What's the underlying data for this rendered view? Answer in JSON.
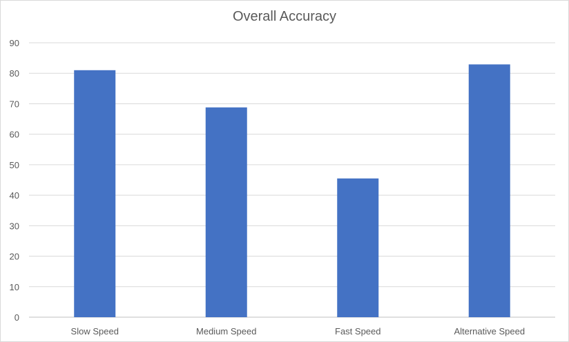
{
  "chart_data": {
    "type": "bar",
    "title": "Overall Accuracy",
    "categories": [
      "Slow Speed",
      "Medium Speed",
      "Fast Speed",
      "Alternative Speed"
    ],
    "values": [
      81,
      68.8,
      45.5,
      82.9
    ],
    "ylim": [
      0,
      90
    ],
    "yticks": [
      0,
      10,
      20,
      30,
      40,
      50,
      60,
      70,
      80,
      90
    ],
    "grid": true,
    "legend": "none",
    "colors": {
      "bar": "#4472C4",
      "grid": "#d9d9d9",
      "text": "#595959"
    }
  }
}
